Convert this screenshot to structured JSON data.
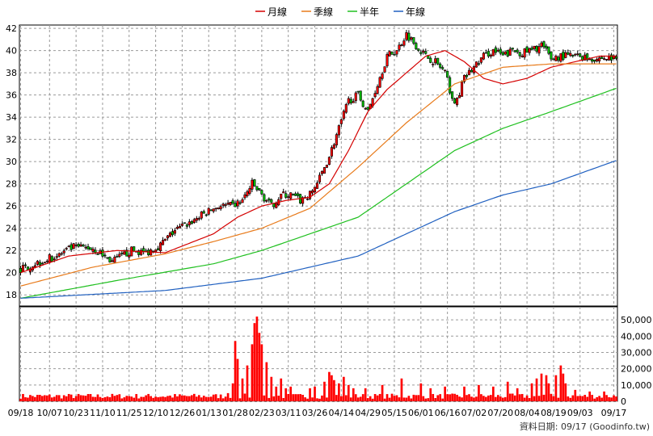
{
  "chart_data": {
    "type": "candlestick",
    "legend": [
      {
        "name": "月線",
        "color": "#d40000"
      },
      {
        "name": "季線",
        "color": "#e87a1a"
      },
      {
        "name": "半年",
        "color": "#20c020"
      },
      {
        "name": "年線",
        "color": "#2060c0"
      }
    ],
    "price_axis": {
      "ylim": [
        17,
        42.3
      ],
      "ticks": [
        18,
        20,
        22,
        24,
        26,
        28,
        30,
        32,
        34,
        36,
        38,
        40,
        42
      ]
    },
    "volume_axis": {
      "ylim": [
        0,
        58000
      ],
      "ticks": [
        0,
        10000,
        20000,
        30000,
        40000,
        50000
      ],
      "tick_labels": [
        "0",
        "10,000",
        "20,000",
        "30,000",
        "40,000",
        "50,000"
      ]
    },
    "x_axis": {
      "n_days": 248,
      "tick_labels": [
        "09/18",
        "10/07",
        "10/23",
        "11/10",
        "11/25",
        "12/10",
        "12/26",
        "01/13",
        "01/28",
        "02/23",
        "03/11",
        "03/26",
        "04/14",
        "04/29",
        "05/15",
        "06/01",
        "06/16",
        "07/02",
        "07/20",
        "08/04",
        "08/19",
        "09/03",
        "09/17"
      ],
      "tick_index": [
        0,
        12,
        23,
        34,
        45,
        56,
        67,
        78,
        89,
        100,
        111,
        122,
        133,
        144,
        155,
        166,
        177,
        188,
        199,
        210,
        221,
        232,
        246
      ]
    },
    "price_series": {
      "keys": {
        "x": [
          0,
          8,
          15,
          22,
          30,
          38,
          46,
          52,
          58,
          64,
          70,
          76,
          82,
          88,
          92,
          96,
          100,
          104,
          108,
          112,
          116,
          120,
          124,
          128,
          132,
          136,
          140,
          144,
          148,
          152,
          156,
          160,
          164,
          168,
          172,
          176,
          180,
          184,
          188,
          192,
          196,
          200,
          204,
          208,
          212,
          216,
          220,
          224,
          228,
          232,
          236,
          240,
          247
        ],
        "close": [
          20.3,
          21.0,
          21.5,
          22.3,
          22.2,
          21.0,
          22.0,
          21.8,
          22.5,
          23.8,
          24.5,
          25.3,
          26.0,
          26.0,
          26.5,
          28.0,
          27.0,
          26.0,
          27.0,
          27.0,
          26.5,
          27.0,
          28.5,
          30.5,
          33.0,
          35.5,
          36.0,
          34.5,
          37.0,
          39.5,
          40.0,
          41.5,
          40.5,
          39.5,
          39.0,
          38.0,
          35.0,
          37.5,
          38.5,
          39.5,
          40.0,
          39.5,
          40.0,
          39.8,
          40.0,
          40.5,
          39.3,
          39.5,
          39.5,
          39.5,
          39.3,
          39.3,
          39.3
        ]
      },
      "noise": 0.35
    },
    "moving_averages": [
      {
        "name": "月線",
        "color": "#d40000",
        "x": [
          0,
          20,
          40,
          60,
          80,
          90,
          100,
          110,
          120,
          128,
          136,
          144,
          152,
          160,
          168,
          176,
          184,
          192,
          200,
          210,
          220,
          230,
          240,
          247
        ],
        "y": [
          20.0,
          21.5,
          22.0,
          21.8,
          23.5,
          25.0,
          26.0,
          26.5,
          26.8,
          28.0,
          31.0,
          34.5,
          36.5,
          38.0,
          39.5,
          40.0,
          39.0,
          37.5,
          37.0,
          37.5,
          38.5,
          39.0,
          39.5,
          39.5
        ]
      },
      {
        "name": "季線",
        "color": "#e87a1a",
        "x": [
          0,
          30,
          60,
          80,
          100,
          120,
          140,
          160,
          180,
          200,
          220,
          247
        ],
        "y": [
          18.8,
          20.5,
          21.7,
          22.8,
          24.0,
          25.8,
          29.5,
          33.5,
          37.0,
          38.5,
          38.8,
          38.8
        ]
      },
      {
        "name": "半年",
        "color": "#20c020",
        "x": [
          0,
          40,
          80,
          100,
          120,
          140,
          160,
          180,
          200,
          220,
          247
        ],
        "y": [
          17.7,
          19.3,
          20.8,
          22.0,
          23.5,
          25.0,
          28.0,
          31.0,
          33.0,
          34.5,
          36.6
        ]
      },
      {
        "name": "年線",
        "color": "#2060c0",
        "x": [
          0,
          60,
          100,
          140,
          160,
          180,
          200,
          220,
          247
        ],
        "y": [
          17.7,
          18.4,
          19.5,
          21.5,
          23.5,
          25.5,
          27.0,
          28.0,
          30.1
        ]
      }
    ],
    "volume_series": {
      "base": 3500,
      "spikes": [
        [
          86,
          5000
        ],
        [
          88,
          11000
        ],
        [
          89,
          37000
        ],
        [
          90,
          26000
        ],
        [
          92,
          14000
        ],
        [
          94,
          22000
        ],
        [
          96,
          35000
        ],
        [
          97,
          48000
        ],
        [
          98,
          52000
        ],
        [
          99,
          42000
        ],
        [
          100,
          35000
        ],
        [
          102,
          24000
        ],
        [
          104,
          15000
        ],
        [
          106,
          9000
        ],
        [
          108,
          14000
        ],
        [
          110,
          8000
        ],
        [
          112,
          9000
        ],
        [
          120,
          8000
        ],
        [
          122,
          9000
        ],
        [
          126,
          12000
        ],
        [
          128,
          18000
        ],
        [
          129,
          16000
        ],
        [
          130,
          13000
        ],
        [
          132,
          11000
        ],
        [
          134,
          15000
        ],
        [
          136,
          10000
        ],
        [
          138,
          8000
        ],
        [
          143,
          8000
        ],
        [
          150,
          10000
        ],
        [
          158,
          14000
        ],
        [
          166,
          11000
        ],
        [
          170,
          8000
        ],
        [
          176,
          9000
        ],
        [
          184,
          9000
        ],
        [
          190,
          10000
        ],
        [
          196,
          9000
        ],
        [
          202,
          12000
        ],
        [
          206,
          8000
        ],
        [
          212,
          11000
        ],
        [
          214,
          14000
        ],
        [
          216,
          17000
        ],
        [
          218,
          16000
        ],
        [
          219,
          11000
        ],
        [
          222,
          16000
        ],
        [
          224,
          22000
        ],
        [
          225,
          17000
        ],
        [
          226,
          11000
        ],
        [
          230,
          7000
        ],
        [
          236,
          6000
        ],
        [
          242,
          6000
        ]
      ]
    },
    "footer": "資料日期: 09/17  (Goodinfo.tw)"
  }
}
